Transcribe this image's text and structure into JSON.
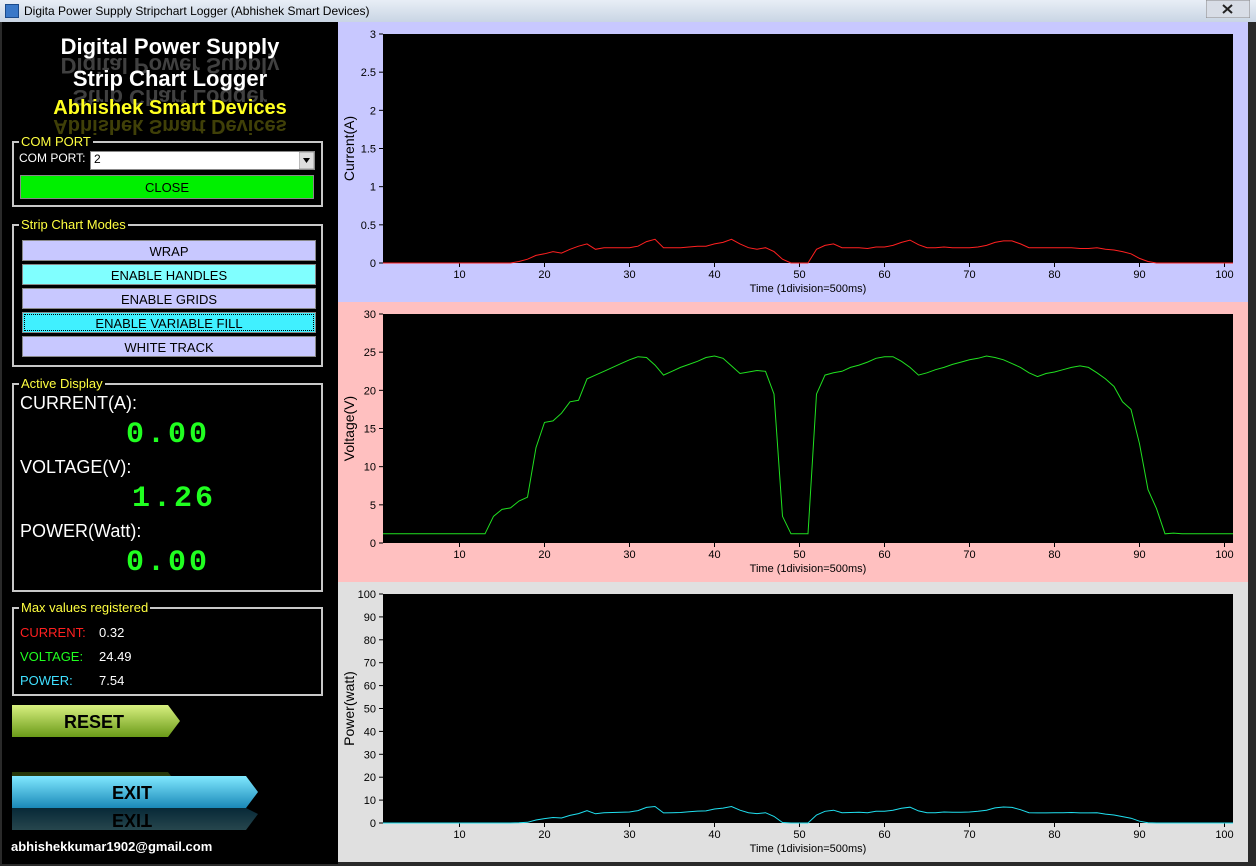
{
  "window": {
    "title": "Digita Power Supply Stripchart Logger (Abhishek Smart Devices)"
  },
  "header": {
    "line1": "Digital Power Supply",
    "line2": "Strip Chart Logger",
    "line3": "Abhishek Smart Devices"
  },
  "com_port": {
    "group": "COM PORT",
    "label": "COM PORT:",
    "selected": "2",
    "button": "CLOSE"
  },
  "modes": {
    "group": "Strip Chart Modes",
    "buttons": [
      "WRAP",
      "ENABLE HANDLES",
      "ENABLE GRIDS",
      "ENABLE VARIABLE FILL",
      "WHITE TRACK"
    ]
  },
  "active_display": {
    "group": "Active Display",
    "current_label": "CURRENT(A):",
    "current_value": "0.00",
    "voltage_label": "VOLTAGE(V):",
    "voltage_value": "1.26",
    "power_label": "POWER(Watt):",
    "power_value": "0.00"
  },
  "max_values": {
    "group": "Max values registered",
    "rows": [
      {
        "label": "CURRENT:",
        "value": "0.32"
      },
      {
        "label": "VOLTAGE:",
        "value": "24.49"
      },
      {
        "label": "POWER:",
        "value": "7.54"
      }
    ]
  },
  "buttons": {
    "reset": "RESET",
    "exit": "EXIT"
  },
  "email": "abhishekkumar1902@gmail.com",
  "chart_data": [
    {
      "type": "line",
      "y_label": "Current(A)",
      "x_label": "Time (1division=500ms)",
      "background": "#c8c8ff",
      "grid": false,
      "xlim": [
        1,
        101
      ],
      "xticks": [
        10,
        20,
        30,
        40,
        50,
        60,
        70,
        80,
        90,
        100
      ],
      "ylim": [
        0,
        3
      ],
      "yticks": [
        0,
        0.5,
        1,
        1.5,
        2,
        2.5,
        3
      ],
      "x": [
        1,
        2,
        3,
        4,
        5,
        6,
        7,
        8,
        9,
        10,
        11,
        12,
        13,
        14,
        15,
        16,
        17,
        18,
        19,
        20,
        21,
        22,
        23,
        24,
        25,
        26,
        27,
        28,
        29,
        30,
        31,
        32,
        33,
        34,
        35,
        36,
        37,
        38,
        39,
        40,
        41,
        42,
        43,
        44,
        45,
        46,
        47,
        48,
        49,
        50,
        51,
        52,
        53,
        54,
        55,
        56,
        57,
        58,
        59,
        60,
        61,
        62,
        63,
        64,
        65,
        66,
        67,
        68,
        69,
        70,
        71,
        72,
        73,
        74,
        75,
        76,
        77,
        78,
        79,
        80,
        81,
        82,
        83,
        84,
        85,
        86,
        87,
        88,
        89,
        90,
        91,
        92,
        93,
        94,
        95,
        96,
        97,
        98,
        99,
        100,
        101
      ],
      "color": "#ff2020",
      "values": [
        0,
        0,
        0,
        0,
        0,
        0,
        0,
        0,
        0,
        0,
        0,
        0,
        0,
        0,
        0,
        0,
        0.02,
        0.05,
        0.1,
        0.12,
        0.15,
        0.13,
        0.18,
        0.22,
        0.25,
        0.18,
        0.2,
        0.2,
        0.2,
        0.2,
        0.22,
        0.28,
        0.31,
        0.2,
        0.2,
        0.2,
        0.21,
        0.22,
        0.22,
        0.25,
        0.27,
        0.31,
        0.25,
        0.2,
        0.18,
        0.2,
        0.15,
        0.05,
        0,
        0,
        0,
        0.18,
        0.23,
        0.25,
        0.2,
        0.2,
        0.2,
        0.19,
        0.21,
        0.21,
        0.23,
        0.27,
        0.3,
        0.24,
        0.2,
        0.2,
        0.21,
        0.2,
        0.2,
        0.2,
        0.21,
        0.23,
        0.27,
        0.29,
        0.29,
        0.25,
        0.2,
        0.2,
        0.2,
        0.2,
        0.2,
        0.2,
        0.19,
        0.19,
        0.2,
        0.18,
        0.17,
        0.15,
        0.12,
        0.06,
        0.02,
        0,
        0,
        0,
        0,
        0,
        0,
        0,
        0,
        0,
        0
      ]
    },
    {
      "type": "line",
      "y_label": "Voltage(V)",
      "x_label": "Time (1division=500ms)",
      "background": "#ffc0c0",
      "grid": false,
      "xlim": [
        1,
        101
      ],
      "xticks": [
        10,
        20,
        30,
        40,
        50,
        60,
        70,
        80,
        90,
        100
      ],
      "ylim": [
        0,
        30
      ],
      "yticks": [
        0,
        5,
        10,
        15,
        20,
        25,
        30
      ],
      "x": [
        1,
        2,
        3,
        4,
        5,
        6,
        7,
        8,
        9,
        10,
        11,
        12,
        13,
        14,
        15,
        16,
        17,
        18,
        19,
        20,
        21,
        22,
        23,
        24,
        25,
        26,
        27,
        28,
        29,
        30,
        31,
        32,
        33,
        34,
        35,
        36,
        37,
        38,
        39,
        40,
        41,
        42,
        43,
        44,
        45,
        46,
        47,
        48,
        49,
        50,
        51,
        52,
        53,
        54,
        55,
        56,
        57,
        58,
        59,
        60,
        61,
        62,
        63,
        64,
        65,
        66,
        67,
        68,
        69,
        70,
        71,
        72,
        73,
        74,
        75,
        76,
        77,
        78,
        79,
        80,
        81,
        82,
        83,
        84,
        85,
        86,
        87,
        88,
        89,
        90,
        91,
        92,
        93,
        94,
        95,
        96,
        97,
        98,
        99,
        100,
        101
      ],
      "color": "#20e020",
      "values": [
        1.2,
        1.2,
        1.2,
        1.2,
        1.2,
        1.2,
        1.2,
        1.2,
        1.2,
        1.2,
        1.2,
        1.2,
        1.2,
        3.5,
        4.4,
        4.6,
        5.5,
        6,
        12.5,
        15.8,
        16,
        17,
        18.5,
        18.7,
        21.5,
        22,
        22.5,
        23,
        23.5,
        24,
        24.4,
        24.3,
        23.3,
        22,
        22.5,
        23,
        23.4,
        23.8,
        24.3,
        24.5,
        24.2,
        23.2,
        22.2,
        22.4,
        22.6,
        22.5,
        19.5,
        3.5,
        1.2,
        1.2,
        1.2,
        19.5,
        22,
        22.3,
        22.5,
        23,
        23.3,
        23.7,
        24.2,
        24.4,
        24.4,
        23.8,
        23,
        22,
        22.3,
        22.7,
        23,
        23.4,
        23.7,
        24,
        24.2,
        24.5,
        24.3,
        24,
        23.5,
        23,
        22.3,
        21.8,
        22.2,
        22.4,
        22.7,
        23,
        23.2,
        23,
        22.3,
        21.5,
        20.5,
        18.5,
        17.5,
        13,
        7,
        4.5,
        1.2,
        1.3,
        1.2,
        1.2,
        1.2,
        1.2,
        1.2,
        1.2,
        1.2
      ]
    },
    {
      "type": "line",
      "y_label": "Power(watt)",
      "x_label": "Time (1division=500ms)",
      "background": "#e0e0e0",
      "grid": false,
      "xlim": [
        1,
        101
      ],
      "xticks": [
        10,
        20,
        30,
        40,
        50,
        60,
        70,
        80,
        90,
        100
      ],
      "ylim": [
        0,
        100
      ],
      "yticks": [
        0,
        10,
        20,
        30,
        40,
        50,
        60,
        70,
        80,
        90,
        100
      ],
      "x": [
        1,
        2,
        3,
        4,
        5,
        6,
        7,
        8,
        9,
        10,
        11,
        12,
        13,
        14,
        15,
        16,
        17,
        18,
        19,
        20,
        21,
        22,
        23,
        24,
        25,
        26,
        27,
        28,
        29,
        30,
        31,
        32,
        33,
        34,
        35,
        36,
        37,
        38,
        39,
        40,
        41,
        42,
        43,
        44,
        45,
        46,
        47,
        48,
        49,
        50,
        51,
        52,
        53,
        54,
        55,
        56,
        57,
        58,
        59,
        60,
        61,
        62,
        63,
        64,
        65,
        66,
        67,
        68,
        69,
        70,
        71,
        72,
        73,
        74,
        75,
        76,
        77,
        78,
        79,
        80,
        81,
        82,
        83,
        84,
        85,
        86,
        87,
        88,
        89,
        90,
        91,
        92,
        93,
        94,
        95,
        96,
        97,
        98,
        99,
        100,
        101
      ],
      "color": "#20e0f0",
      "values": [
        0,
        0,
        0,
        0,
        0,
        0,
        0,
        0,
        0,
        0,
        0,
        0,
        0,
        0,
        0,
        0,
        0.1,
        0.3,
        1.3,
        1.9,
        2.4,
        2.2,
        3.3,
        4.1,
        5.4,
        4,
        4.5,
        4.6,
        4.7,
        4.8,
        5.4,
        6.8,
        7.2,
        4.4,
        4.5,
        4.6,
        4.9,
        5.2,
        5.3,
        6.1,
        6.5,
        7.2,
        5.6,
        4.5,
        4.1,
        4.5,
        2.9,
        0.2,
        0,
        0,
        0,
        3.5,
        5.1,
        5.6,
        4.5,
        4.6,
        4.7,
        4.5,
        5.1,
        5.1,
        5.6,
        6.4,
        6.9,
        5.3,
        4.5,
        4.5,
        4.8,
        4.7,
        4.7,
        4.8,
        5.1,
        5.6,
        6.6,
        7,
        6.8,
        5.8,
        4.5,
        4.4,
        4.4,
        4.5,
        4.5,
        4.6,
        4.4,
        4.4,
        4.5,
        3.9,
        3.5,
        2.8,
        2.1,
        0.8,
        0.1,
        0,
        0,
        0,
        0,
        0,
        0,
        0,
        0,
        0,
        0
      ]
    }
  ]
}
